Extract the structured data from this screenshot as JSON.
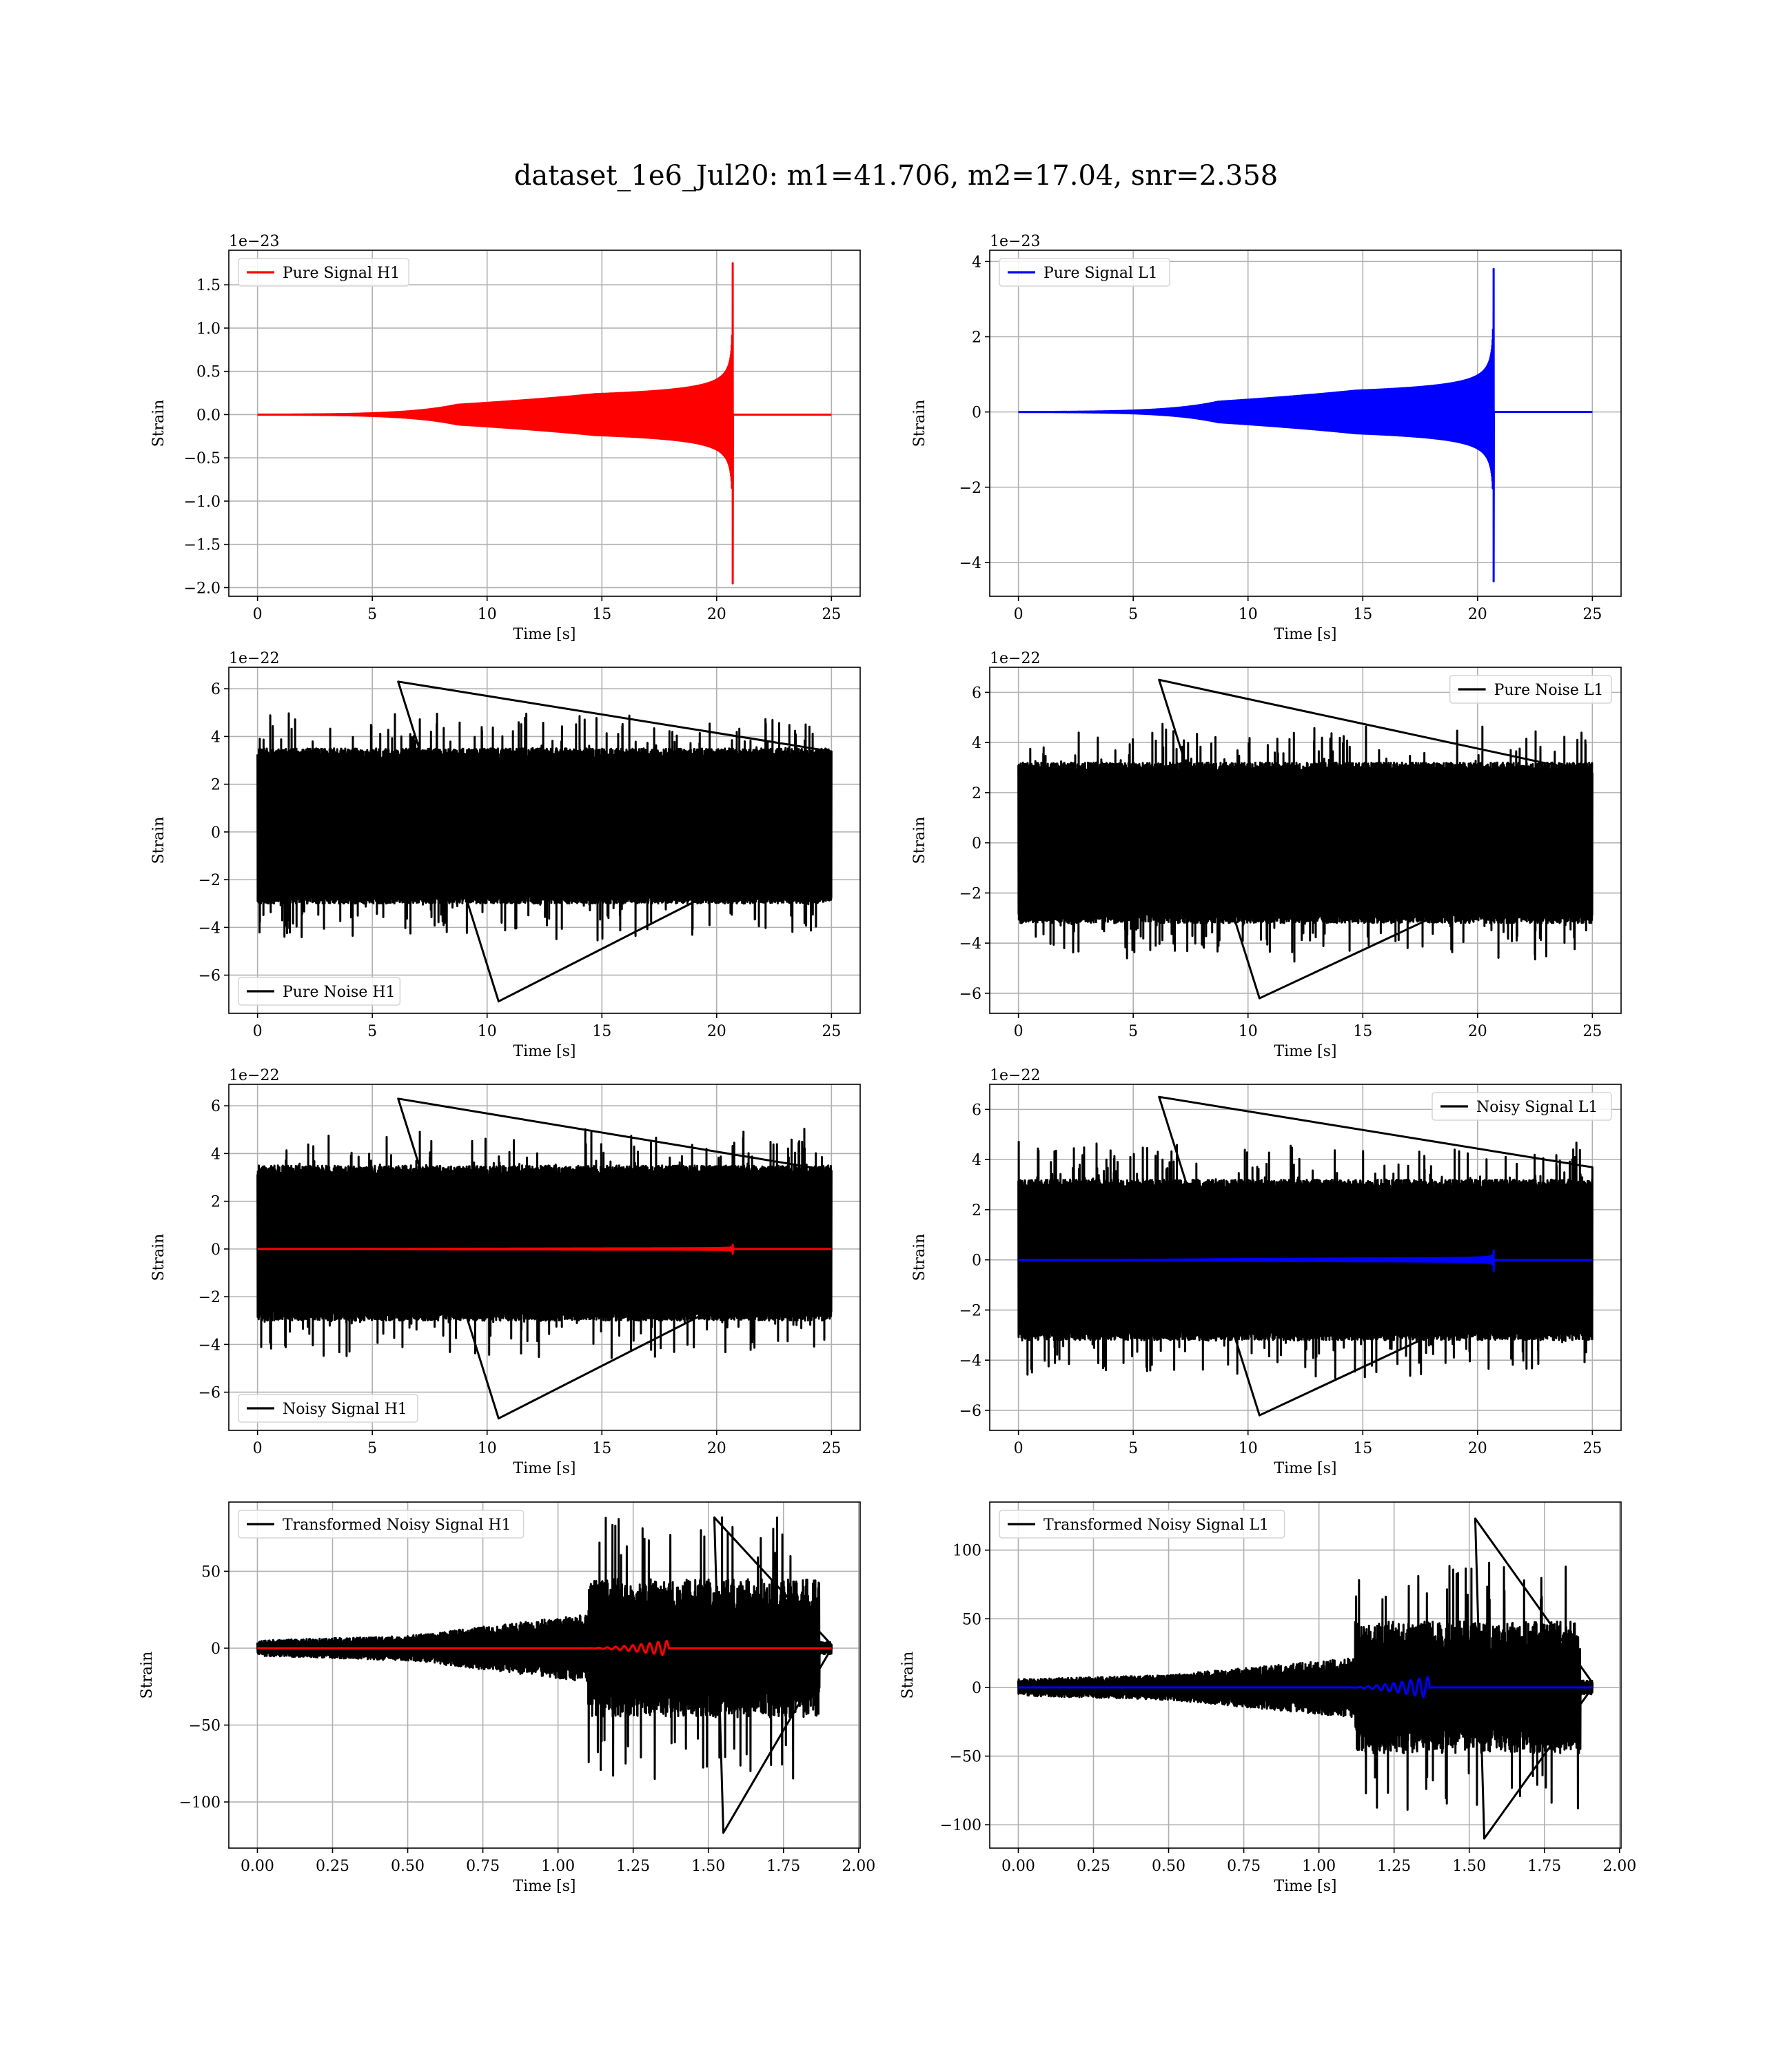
{
  "figure": {
    "title": "dataset_1e6_Jul20: m1=41.706, m2=17.04, snr=2.358"
  },
  "chart_data": [
    {
      "id": "pure-signal-h1",
      "type": "line",
      "xlabel": "Time [s]",
      "ylabel": "Strain",
      "offset_text": "1e−23",
      "xlim": [
        -1.25,
        26.25
      ],
      "ylim": [
        -2.1,
        1.9
      ],
      "xticks": [
        0,
        5,
        10,
        15,
        20,
        25
      ],
      "xtick_labels": [
        "0",
        "5",
        "10",
        "15",
        "20",
        "25"
      ],
      "yticks": [
        -2.0,
        -1.5,
        -1.0,
        -0.5,
        0.0,
        0.5,
        1.0,
        1.5
      ],
      "ytick_labels": [
        "−2.0",
        "−1.5",
        "−1.0",
        "−0.5",
        "0.0",
        "0.5",
        "1.0",
        "1.5"
      ],
      "grid": true,
      "legend_loc": "upper-left",
      "series": [
        {
          "name": "Pure Signal H1",
          "color": "#ff0000",
          "kind": "chirp",
          "x_range": [
            0,
            25
          ],
          "merger_time": 20.7,
          "peak_pos": 1.75,
          "peak_neg": -1.95,
          "inspiral_amp": 0.5,
          "inspiral_amp_at": 20.4
        }
      ]
    },
    {
      "id": "pure-signal-l1",
      "type": "line",
      "xlabel": "Time [s]",
      "ylabel": "Strain",
      "offset_text": "1e−23",
      "xlim": [
        -1.25,
        26.25
      ],
      "ylim": [
        -4.9,
        4.3
      ],
      "xticks": [
        0,
        5,
        10,
        15,
        20,
        25
      ],
      "xtick_labels": [
        "0",
        "5",
        "10",
        "15",
        "20",
        "25"
      ],
      "yticks": [
        -4,
        -2,
        0,
        2,
        4
      ],
      "ytick_labels": [
        "−4",
        "−2",
        "0",
        "2",
        "4"
      ],
      "grid": true,
      "legend_loc": "upper-left",
      "series": [
        {
          "name": "Pure Signal L1",
          "color": "#0000ff",
          "kind": "chirp",
          "x_range": [
            0,
            25
          ],
          "merger_time": 20.7,
          "peak_pos": 3.8,
          "peak_neg": -4.5,
          "inspiral_amp": 1.2,
          "inspiral_amp_at": 20.4
        }
      ]
    },
    {
      "id": "pure-noise-h1",
      "type": "line",
      "xlabel": "Time [s]",
      "ylabel": "Strain",
      "offset_text": "1e−22",
      "xlim": [
        -1.25,
        26.25
      ],
      "ylim": [
        -7.6,
        6.9
      ],
      "xticks": [
        0,
        5,
        10,
        15,
        20,
        25
      ],
      "xtick_labels": [
        "0",
        "5",
        "10",
        "15",
        "20",
        "25"
      ],
      "yticks": [
        -6,
        -4,
        -2,
        0,
        2,
        4,
        6
      ],
      "ytick_labels": [
        "−6",
        "−4",
        "−2",
        "0",
        "2",
        "4",
        "6"
      ],
      "grid": true,
      "legend_loc": "lower-left",
      "series": [
        {
          "name": "Pure Noise H1",
          "color": "#000000",
          "kind": "noise",
          "x_range": [
            0,
            25
          ],
          "band": [
            -3.0,
            3.5
          ],
          "max": 6.3,
          "min": -7.1
        }
      ]
    },
    {
      "id": "pure-noise-l1",
      "type": "line",
      "xlabel": "Time [s]",
      "ylabel": "Strain",
      "offset_text": "1e−22",
      "xlim": [
        -1.25,
        26.25
      ],
      "ylim": [
        -6.8,
        7.0
      ],
      "xticks": [
        0,
        5,
        10,
        15,
        20,
        25
      ],
      "xtick_labels": [
        "0",
        "5",
        "10",
        "15",
        "20",
        "25"
      ],
      "yticks": [
        -6,
        -4,
        -2,
        0,
        2,
        4,
        6
      ],
      "ytick_labels": [
        "−6",
        "−4",
        "−2",
        "0",
        "2",
        "4",
        "6"
      ],
      "grid": true,
      "legend_loc": "upper-right",
      "series": [
        {
          "name": "Pure Noise L1",
          "color": "#000000",
          "kind": "noise",
          "x_range": [
            0,
            25
          ],
          "band": [
            -3.2,
            3.2
          ],
          "max": 6.5,
          "min": -6.2
        }
      ]
    },
    {
      "id": "noisy-signal-h1",
      "type": "line",
      "xlabel": "Time [s]",
      "ylabel": "Strain",
      "offset_text": "1e−22",
      "xlim": [
        -1.25,
        26.25
      ],
      "ylim": [
        -7.6,
        6.9
      ],
      "xticks": [
        0,
        5,
        10,
        15,
        20,
        25
      ],
      "xtick_labels": [
        "0",
        "5",
        "10",
        "15",
        "20",
        "25"
      ],
      "yticks": [
        -6,
        -4,
        -2,
        0,
        2,
        4,
        6
      ],
      "ytick_labels": [
        "−6",
        "−4",
        "−2",
        "0",
        "2",
        "4",
        "6"
      ],
      "grid": true,
      "legend_loc": "lower-left",
      "series": [
        {
          "name": "Noisy Signal H1",
          "color": "#000000",
          "kind": "noise",
          "x_range": [
            0,
            25
          ],
          "band": [
            -3.0,
            3.5
          ],
          "max": 6.3,
          "min": -7.1
        },
        {
          "name": "",
          "color": "#ff0000",
          "kind": "chirp",
          "x_range": [
            0,
            25
          ],
          "merger_time": 20.7,
          "peak_pos": 0.175,
          "peak_neg": -0.195,
          "inspiral_amp": 0.05,
          "inspiral_amp_at": 20.4
        }
      ]
    },
    {
      "id": "noisy-signal-l1",
      "type": "line",
      "xlabel": "Time [s]",
      "ylabel": "Strain",
      "offset_text": "1e−22",
      "xlim": [
        -1.25,
        26.25
      ],
      "ylim": [
        -6.8,
        7.0
      ],
      "xticks": [
        0,
        5,
        10,
        15,
        20,
        25
      ],
      "xtick_labels": [
        "0",
        "5",
        "10",
        "15",
        "20",
        "25"
      ],
      "yticks": [
        -6,
        -4,
        -2,
        0,
        2,
        4,
        6
      ],
      "ytick_labels": [
        "−6",
        "−4",
        "−2",
        "0",
        "2",
        "4",
        "6"
      ],
      "grid": true,
      "legend_loc": "upper-right",
      "series": [
        {
          "name": "Noisy Signal L1",
          "color": "#000000",
          "kind": "noise",
          "x_range": [
            0,
            25
          ],
          "band": [
            -3.2,
            3.2
          ],
          "max": 6.5,
          "min": -6.2
        },
        {
          "name": "",
          "color": "#0000ff",
          "kind": "chirp",
          "x_range": [
            0,
            25
          ],
          "merger_time": 20.7,
          "peak_pos": 0.38,
          "peak_neg": -0.45,
          "inspiral_amp": 0.12,
          "inspiral_amp_at": 20.4
        }
      ]
    },
    {
      "id": "transformed-noisy-signal-h1",
      "type": "line",
      "xlabel": "Time [s]",
      "ylabel": "Strain",
      "offset_text": "",
      "xlim": [
        -0.095,
        2.005
      ],
      "ylim": [
        -130,
        95
      ],
      "xticks": [
        0.0,
        0.25,
        0.5,
        0.75,
        1.0,
        1.25,
        1.5,
        1.75,
        2.0
      ],
      "xtick_labels": [
        "0.00",
        "0.25",
        "0.50",
        "0.75",
        "1.00",
        "1.25",
        "1.50",
        "1.75",
        "2.00"
      ],
      "yticks": [
        -100,
        -50,
        0,
        50
      ],
      "ytick_labels": [
        "−100",
        "−50",
        "0",
        "50"
      ],
      "grid": true,
      "legend_loc": "upper-left",
      "series": [
        {
          "name": "Transformed Noisy Signal H1",
          "color": "#000000",
          "kind": "tnoise",
          "x_range": [
            0,
            1.91
          ],
          "segments": [
            {
              "x0": 0.0,
              "x1": 0.5,
              "amp0": 5,
              "amp1": 8
            },
            {
              "x0": 0.5,
              "x1": 1.1,
              "amp0": 8,
              "amp1": 22
            },
            {
              "x0": 1.1,
              "x1": 1.87,
              "amp0": 45,
              "amp1": 45
            },
            {
              "x0": 1.87,
              "x1": 1.91,
              "amp0": 4,
              "amp1": 4
            }
          ],
          "max": 85,
          "min": -120
        },
        {
          "name": "",
          "color": "#ff0000",
          "kind": "tchirp",
          "x_range": [
            0,
            1.91
          ],
          "chirp_start": 1.1,
          "chirp_end": 1.37,
          "amp": 5
        }
      ]
    },
    {
      "id": "transformed-noisy-signal-l1",
      "type": "line",
      "xlabel": "Time [s]",
      "ylabel": "Strain",
      "offset_text": "",
      "xlim": [
        -0.095,
        2.005
      ],
      "ylim": [
        -117,
        135
      ],
      "xticks": [
        0.0,
        0.25,
        0.5,
        0.75,
        1.0,
        1.25,
        1.5,
        1.75,
        2.0
      ],
      "xtick_labels": [
        "0.00",
        "0.25",
        "0.50",
        "0.75",
        "1.00",
        "1.25",
        "1.50",
        "1.75",
        "2.00"
      ],
      "yticks": [
        -100,
        -50,
        0,
        50,
        100
      ],
      "ytick_labels": [
        "−100",
        "−50",
        "0",
        "50",
        "100"
      ],
      "grid": true,
      "legend_loc": "upper-left",
      "series": [
        {
          "name": "Transformed Noisy Signal L1",
          "color": "#000000",
          "kind": "tnoise",
          "x_range": [
            0,
            1.91
          ],
          "segments": [
            {
              "x0": 0.0,
              "x1": 0.5,
              "amp0": 6,
              "amp1": 9
            },
            {
              "x0": 0.5,
              "x1": 1.12,
              "amp0": 9,
              "amp1": 22
            },
            {
              "x0": 1.12,
              "x1": 1.87,
              "amp0": 48,
              "amp1": 48
            },
            {
              "x0": 1.87,
              "x1": 1.91,
              "amp0": 5,
              "amp1": 5
            }
          ],
          "max": 123,
          "min": -110
        },
        {
          "name": "",
          "color": "#0000ff",
          "kind": "tchirp",
          "x_range": [
            0,
            1.91
          ],
          "chirp_start": 1.1,
          "chirp_end": 1.37,
          "amp": 8
        }
      ]
    }
  ]
}
